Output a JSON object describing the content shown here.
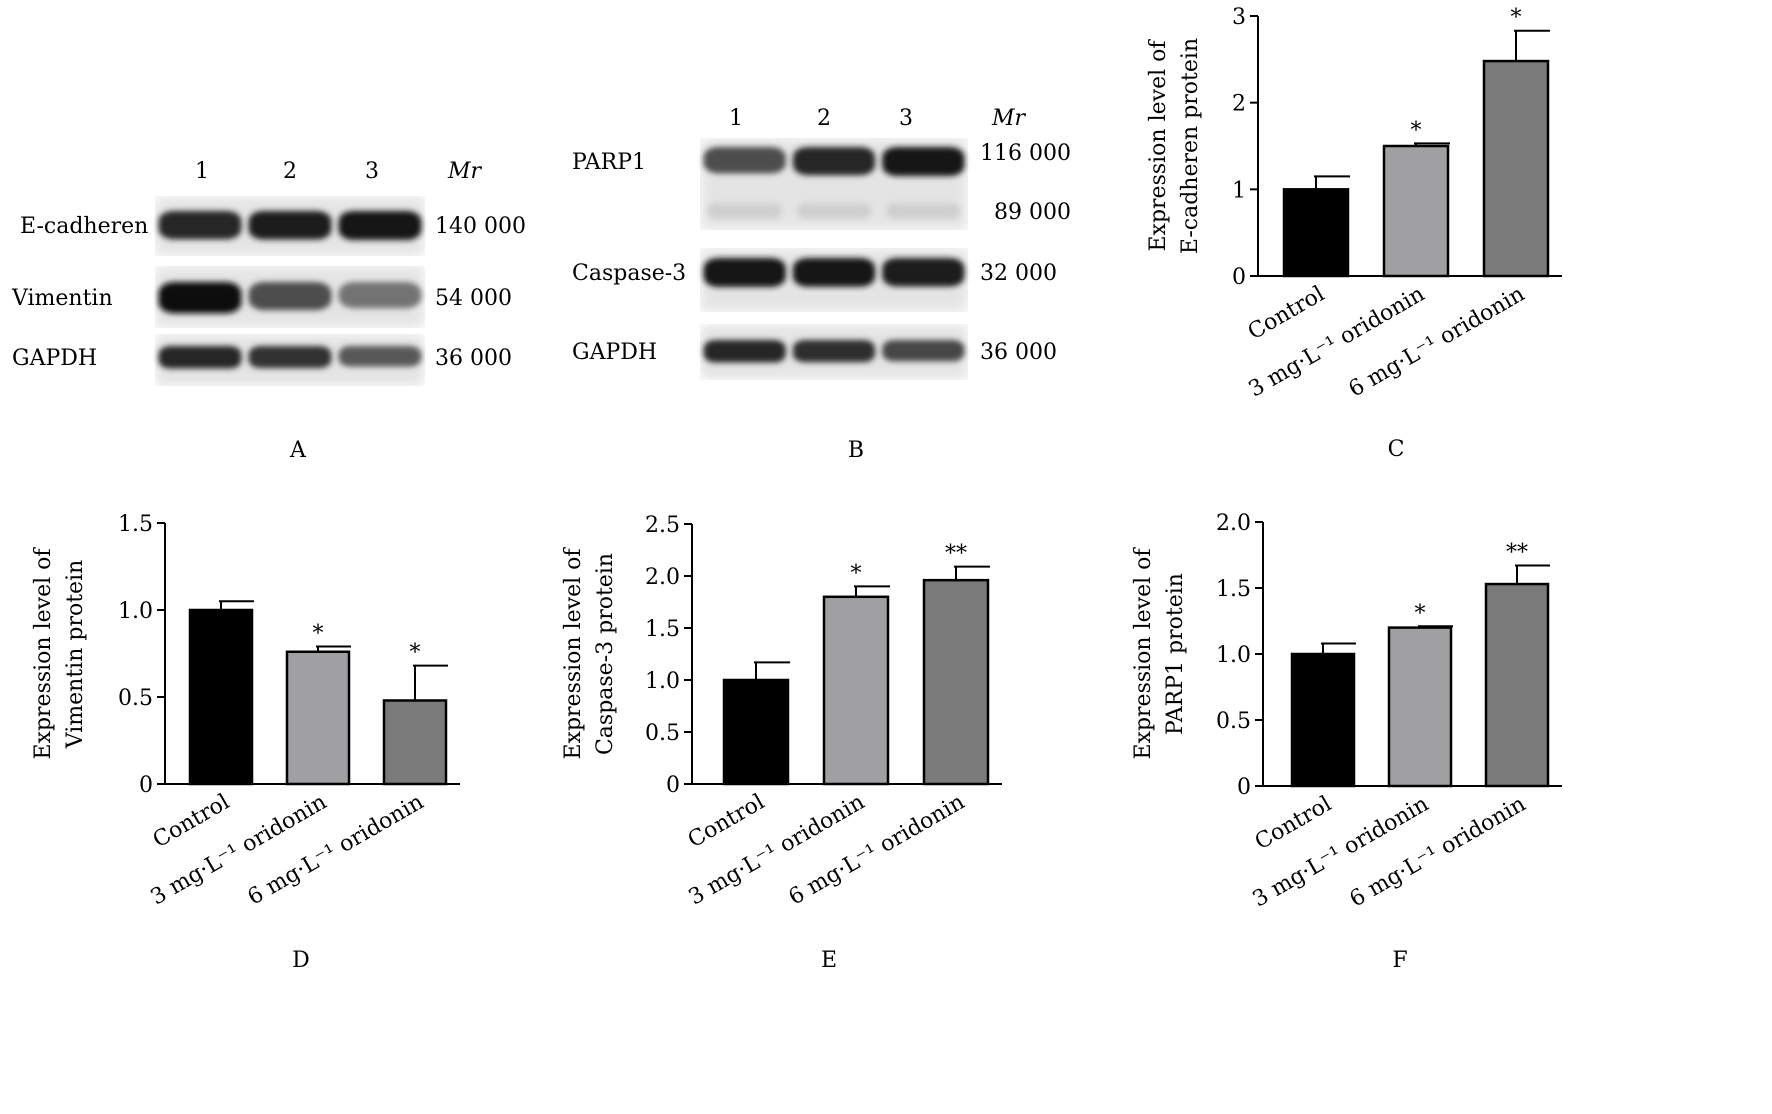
{
  "blots": [
    {
      "id": "A",
      "panel_letter": "A",
      "lanes": [
        "1",
        "2",
        "3"
      ],
      "mr_label": "Mr",
      "proteins": [
        {
          "name": "E-cadheren",
          "mw": "140 000",
          "intensities": [
            0.85,
            0.88,
            0.92
          ]
        },
        {
          "name": "Vimentin",
          "mw": "54 000",
          "intensities": [
            0.95,
            0.7,
            0.55
          ]
        },
        {
          "name": "GAPDH",
          "mw": "36 000",
          "intensities": [
            0.85,
            0.8,
            0.65
          ]
        }
      ]
    },
    {
      "id": "B",
      "panel_letter": "B",
      "lanes": [
        "1",
        "2",
        "3"
      ],
      "mr_label": "Mr",
      "proteins": [
        {
          "name": "PARP1",
          "mw": "116 000",
          "second_mw": "89 000",
          "intensities": [
            0.7,
            0.85,
            0.92
          ]
        },
        {
          "name": "Caspase-3",
          "mw": "32 000",
          "intensities": [
            0.92,
            0.9,
            0.88
          ]
        },
        {
          "name": "GAPDH",
          "mw": "36 000",
          "intensities": [
            0.85,
            0.82,
            0.72
          ]
        }
      ]
    }
  ],
  "chart_data": [
    {
      "id": "C",
      "type": "bar",
      "panel_letter": "C",
      "ylabel_lines": [
        "Expression level of",
        "E-cadheren protein"
      ],
      "categories": [
        "Control",
        "3 mg·L⁻¹ oridonin",
        "6 mg·L⁻¹ oridonin"
      ],
      "values": [
        1.0,
        1.5,
        2.48
      ],
      "errors": [
        0.15,
        0.03,
        0.35
      ],
      "significance": [
        "",
        "*",
        "*"
      ],
      "ylim": [
        0,
        3
      ],
      "yticks": [
        0,
        1,
        2,
        3
      ],
      "ytick_labels": [
        "0",
        "1",
        "2",
        "3"
      ]
    },
    {
      "id": "D",
      "type": "bar",
      "panel_letter": "D",
      "ylabel_lines": [
        "Expression level of",
        "Vimentin protein"
      ],
      "categories": [
        "Control",
        "3 mg·L⁻¹ oridonin",
        "6 mg·L⁻¹ oridonin"
      ],
      "values": [
        1.0,
        0.76,
        0.48
      ],
      "errors": [
        0.05,
        0.03,
        0.2
      ],
      "significance": [
        "",
        "*",
        "*"
      ],
      "ylim": [
        0,
        1.5
      ],
      "yticks": [
        0,
        0.5,
        1.0,
        1.5
      ],
      "ytick_labels": [
        "0",
        "0.5",
        "1.0",
        "1.5"
      ]
    },
    {
      "id": "E",
      "type": "bar",
      "panel_letter": "E",
      "ylabel_lines": [
        "Expression level of",
        "Caspase-3 protein"
      ],
      "categories": [
        "Control",
        "3 mg·L⁻¹ oridonin",
        "6 mg·L⁻¹ oridonin"
      ],
      "values": [
        1.0,
        1.8,
        1.96
      ],
      "errors": [
        0.17,
        0.1,
        0.13
      ],
      "significance": [
        "",
        "*",
        "**"
      ],
      "ylim": [
        0,
        2.5
      ],
      "yticks": [
        0,
        0.5,
        1.0,
        1.5,
        2.0,
        2.5
      ],
      "ytick_labels": [
        "0",
        "0.5",
        "1.0",
        "1.5",
        "2.0",
        "2.5"
      ]
    },
    {
      "id": "F",
      "type": "bar",
      "panel_letter": "F",
      "ylabel_lines": [
        "Expression level of",
        "PARP1 protein"
      ],
      "categories": [
        "Control",
        "3 mg·L⁻¹ oridonin",
        "6 mg·L⁻¹ oridonin"
      ],
      "values": [
        1.0,
        1.2,
        1.53
      ],
      "errors": [
        0.08,
        0.01,
        0.14
      ],
      "significance": [
        "",
        "*",
        "**"
      ],
      "ylim": [
        0,
        2.0
      ],
      "yticks": [
        0,
        0.5,
        1.0,
        1.5,
        2.0
      ],
      "ytick_labels": [
        "0",
        "0.5",
        "1.0",
        "1.5",
        "2.0"
      ]
    }
  ],
  "colors": {
    "bars": [
      "#000000",
      "#a0a0a2",
      "#7a7a7a"
    ],
    "axis": "#000000",
    "band": "#111111"
  }
}
